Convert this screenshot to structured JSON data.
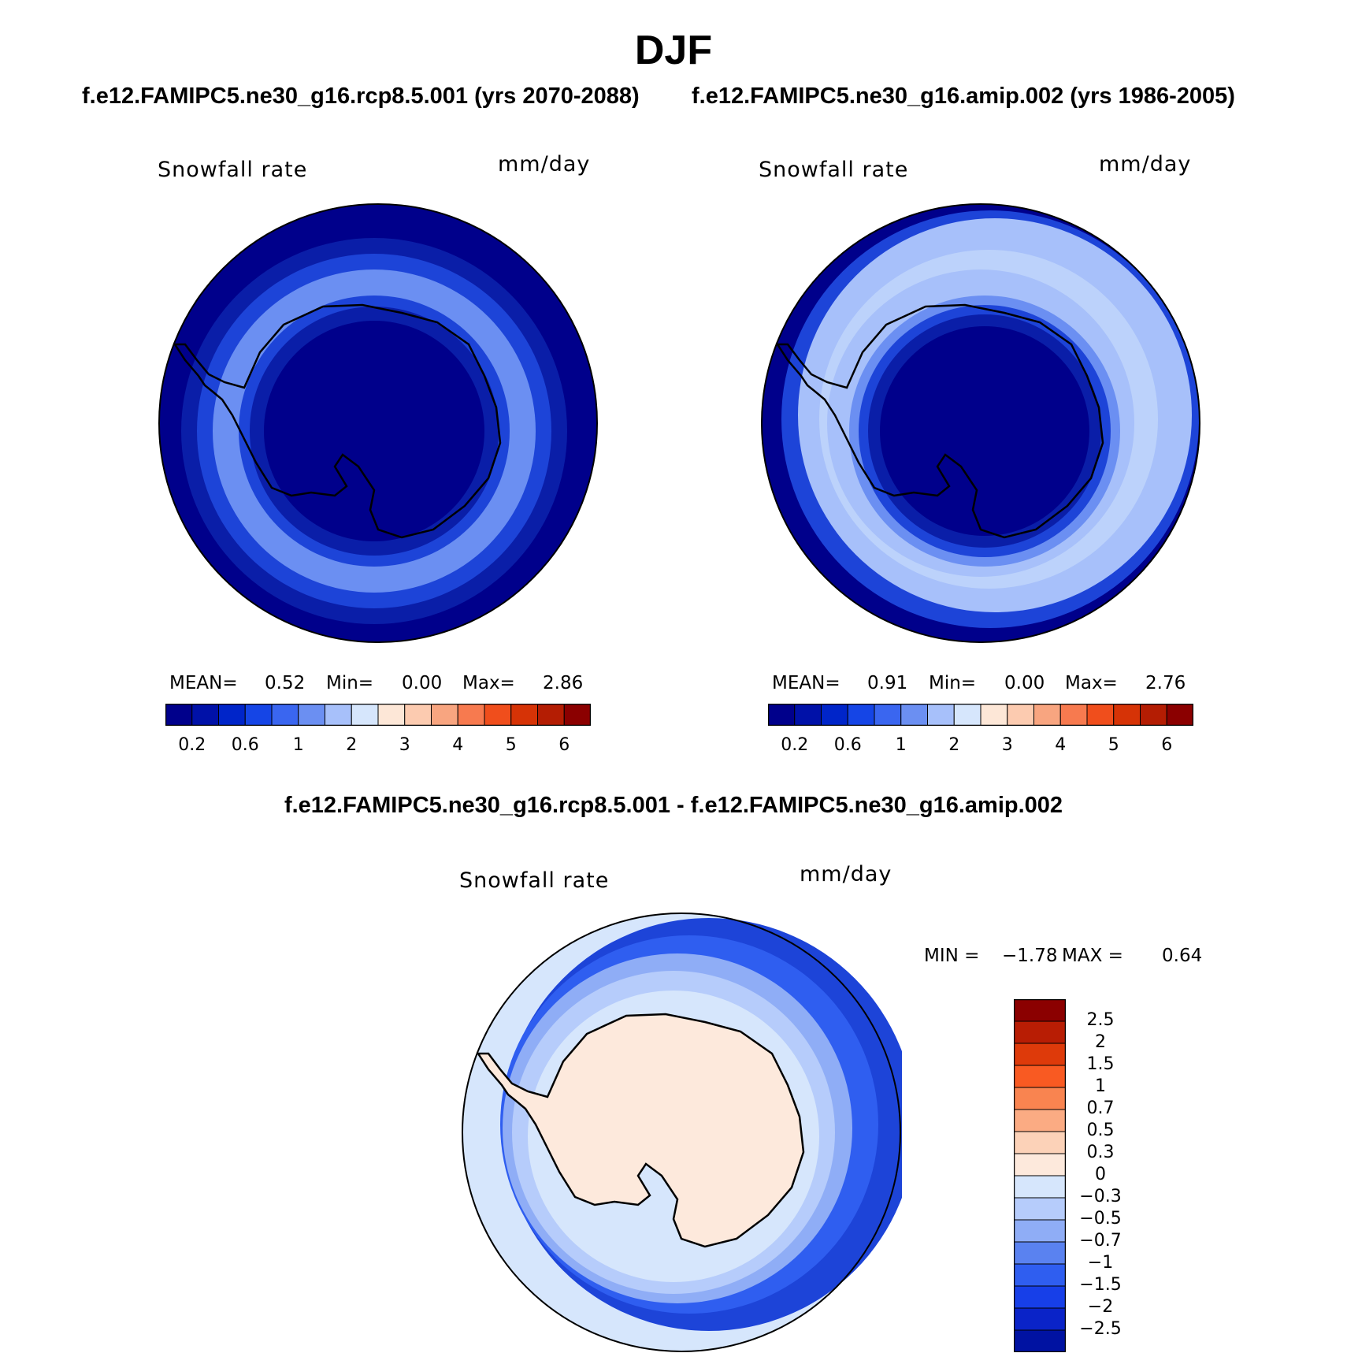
{
  "title": "DJF",
  "panels": [
    {
      "case": "f.e12.FAMIPC5.ne30_g16.rcp8.5.001 (yrs 2070-2088)",
      "variable": "Snowfall rate",
      "units": "mm/day",
      "stats": {
        "mean_label": "MEAN=",
        "mean": "0.52",
        "min_label": "Min=",
        "min": "0.00",
        "max_label": "Max=",
        "max": "2.86"
      }
    },
    {
      "case": "f.e12.FAMIPC5.ne30_g16.amip.002 (yrs 1986-2005)",
      "variable": "Snowfall rate",
      "units": "mm/day",
      "stats": {
        "mean_label": "MEAN=",
        "mean": "0.91",
        "min_label": "Min=",
        "min": "0.00",
        "max_label": "Max=",
        "max": "2.76"
      }
    }
  ],
  "abs_colorbar": {
    "colors": [
      "#00008b",
      "#0011a8",
      "#0025c9",
      "#1545e6",
      "#3a66f0",
      "#6b8ff2",
      "#a7c0fa",
      "#d6e6fc",
      "#fde7d7",
      "#fccbb0",
      "#f8a580",
      "#f77a4f",
      "#f04e1c",
      "#d63306",
      "#b41d03",
      "#8b0000"
    ],
    "ticks": [
      "0.2",
      "0.6",
      "1",
      "2",
      "3",
      "4",
      "5",
      "6"
    ]
  },
  "difference": {
    "title": "f.e12.FAMIPC5.ne30_g16.rcp8.5.001 - f.e12.FAMIPC5.ne30_g16.amip.002",
    "variable": "Snowfall rate",
    "units": "mm/day",
    "min_label": "MIN =",
    "min": "−1.78",
    "max_label": "MAX =",
    "max": "0.64",
    "colorbar": {
      "colors": [
        "#8b0000",
        "#b81d04",
        "#de3a0a",
        "#f95a22",
        "#f98450",
        "#fbab83",
        "#fcd2b8",
        "#fde9dc",
        "#d6e6fc",
        "#b6ccfb",
        "#8fadf6",
        "#5a82f0",
        "#2f5ef0",
        "#173fe8",
        "#0a23c8",
        "#0012a2"
      ],
      "labels": [
        "2.5",
        "2",
        "1.5",
        "1",
        "0.7",
        "0.5",
        "0.3",
        "0",
        "−0.3",
        "−0.5",
        "−0.7",
        "−1",
        "−1.5",
        "−2",
        "−2.5"
      ]
    }
  }
}
